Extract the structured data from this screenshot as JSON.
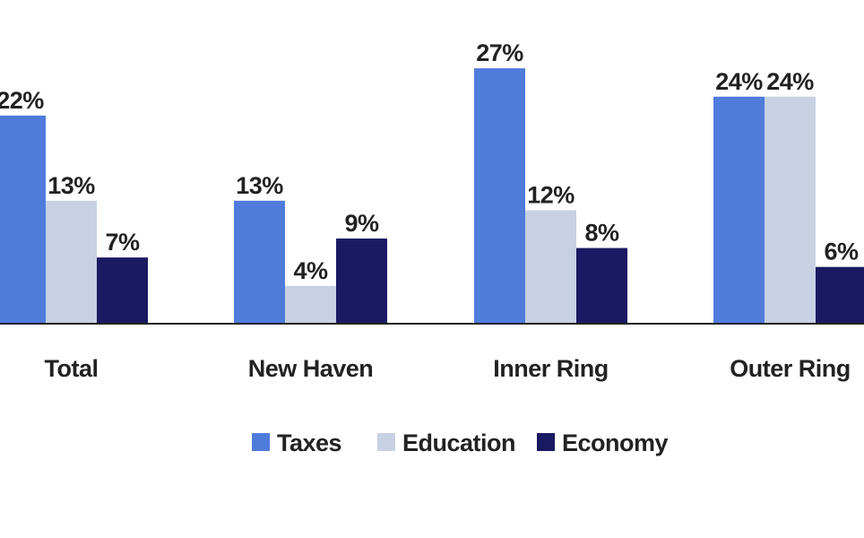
{
  "chart_data": {
    "type": "bar",
    "categories": [
      "Total",
      "New Haven",
      "Inner Ring",
      "Outer Ring"
    ],
    "series": [
      {
        "name": "Taxes",
        "values": [
          22,
          13,
          27,
          24
        ],
        "color": "#4f7bdb"
      },
      {
        "name": "Education",
        "values": [
          13,
          4,
          12,
          24
        ],
        "color": "#c7d1e3"
      },
      {
        "name": "Economy",
        "values": [
          7,
          9,
          8,
          6
        ],
        "color": "#1a1a63"
      }
    ],
    "value_suffix": "%",
    "data_labels": true,
    "grid": false,
    "legend_position": "bottom",
    "ylim": [
      0,
      30
    ],
    "axis_color": "#222222"
  }
}
